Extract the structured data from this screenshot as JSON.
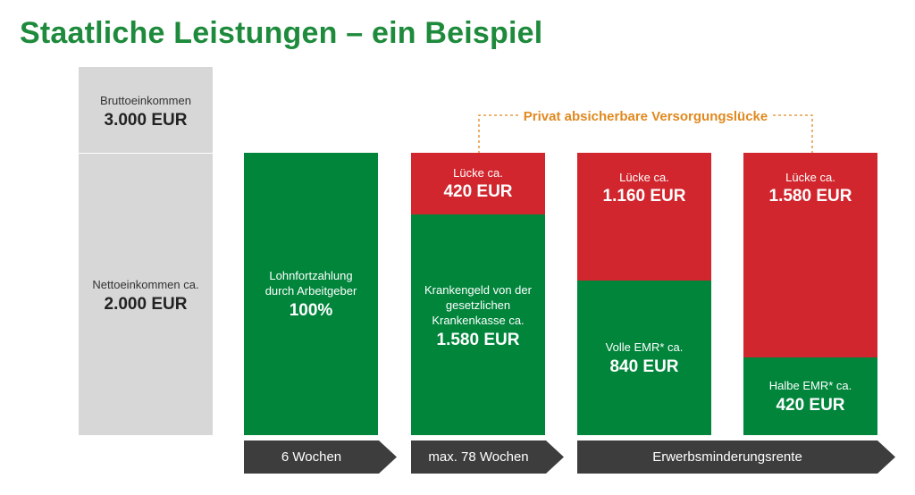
{
  "title": "Staatliche Leistungen – ein Beispiel",
  "gross": {
    "label": "Bruttoeinkommen",
    "value": "3.000 EUR"
  },
  "net": {
    "label": "Nettoeinkommen ca.",
    "value": "2.000 EUR"
  },
  "bracket_label": "Privat absicherbare Versorgungslücke",
  "col1": {
    "line1": "Lohnfortzahlung",
    "line2": "durch Arbeitgeber",
    "value": "100%"
  },
  "col2": {
    "gap_label": "Lücke ca.",
    "gap_value": "420 EUR",
    "line1": "Krankengeld von der",
    "line2": "gesetzlichen",
    "line3": "Krankenkasse ca.",
    "value": "1.580 EUR"
  },
  "col3": {
    "gap_label": "Lücke ca.",
    "gap_value": "1.160 EUR",
    "label": "Volle EMR* ca.",
    "value": "840 EUR"
  },
  "col4": {
    "gap_label": "Lücke ca.",
    "gap_value": "1.580 EUR",
    "label": "Halbe EMR* ca.",
    "value": "420 EUR"
  },
  "timeline": {
    "phase1": "6 Wochen",
    "phase2": "max. 78 Wochen",
    "phase3": "Erwerbsminderungsrente"
  },
  "colors": {
    "green": "#00853b",
    "red": "#d1262d",
    "gray": "#d7d7d7",
    "dark": "#3d3d3d",
    "title": "#1e8a3c",
    "bracket": "#e0891f"
  }
}
